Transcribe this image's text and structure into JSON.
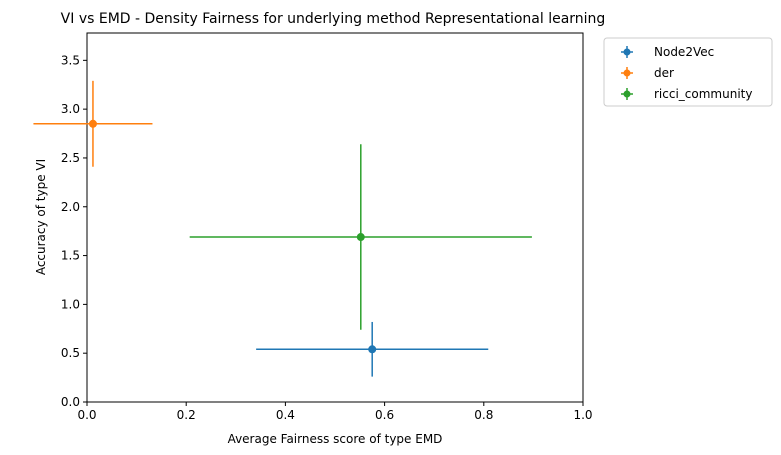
{
  "chart_data": {
    "type": "scatter",
    "title": "VI vs EMD - Density Fairness for underlying method Representational learning",
    "xlabel": "Average Fairness score of type EMD",
    "ylabel": "Accuracy of type VI",
    "xlim": [
      0.0,
      1.0
    ],
    "ylim": [
      0.0,
      3.78
    ],
    "xticks": [
      0.0,
      0.2,
      0.4,
      0.6,
      0.8,
      1.0
    ],
    "xtick_labels": [
      "0.0",
      "0.2",
      "0.4",
      "0.6",
      "0.8",
      "1.0"
    ],
    "yticks": [
      0.0,
      0.5,
      1.0,
      1.5,
      2.0,
      2.5,
      3.0,
      3.5
    ],
    "ytick_labels": [
      "0.0",
      "0.5",
      "1.0",
      "1.5",
      "2.0",
      "2.5",
      "3.0",
      "3.5"
    ],
    "grid": false,
    "legend_position": "outside-top-right",
    "series": [
      {
        "name": "Node2Vec",
        "color": "#1f77b4",
        "x": 0.575,
        "y": 0.54,
        "xerr": 0.234,
        "yerr": 0.28
      },
      {
        "name": "der",
        "color": "#ff7f0e",
        "x": 0.012,
        "y": 2.85,
        "xerr": 0.12,
        "yerr": 0.44
      },
      {
        "name": "ricci_community",
        "color": "#2ca02c",
        "x": 0.552,
        "y": 1.69,
        "xerr": 0.345,
        "yerr": 0.95
      }
    ]
  }
}
